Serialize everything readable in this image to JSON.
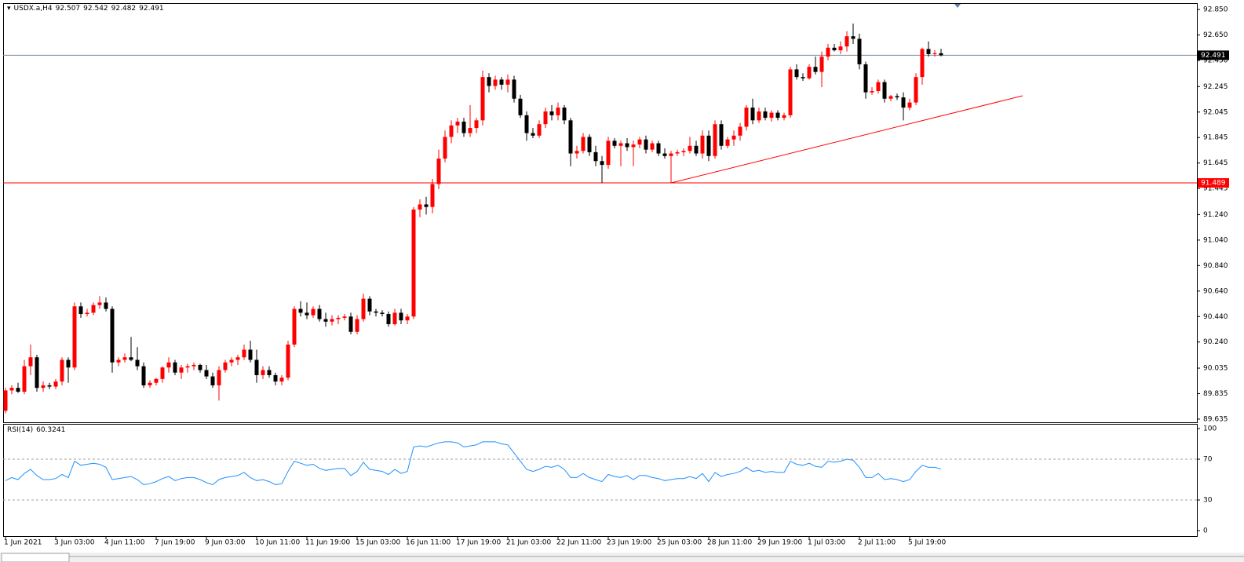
{
  "chart_data": [
    {
      "type": "candlestick",
      "symbol": "USDX.a,H4",
      "categories": [
        "1 Jun 2021",
        null,
        null,
        null,
        null,
        null,
        null,
        null,
        "3 Jun 03:00",
        null,
        null,
        null,
        null,
        null,
        null,
        null,
        "4 Jun 11:00",
        null,
        null,
        null,
        null,
        null,
        null,
        null,
        "7 Jun 19:00",
        null,
        null,
        null,
        null,
        null,
        null,
        null,
        "9 Jun 03:00",
        null,
        null,
        null,
        null,
        null,
        null,
        null,
        "10 Jun 11:00",
        null,
        null,
        null,
        null,
        null,
        null,
        null,
        "11 Jun 19:00",
        null,
        null,
        null,
        null,
        null,
        null,
        null,
        "15 Jun 03:00",
        null,
        null,
        null,
        null,
        null,
        null,
        null,
        "16 Jun 11:00",
        null,
        null,
        null,
        null,
        null,
        null,
        null,
        "17 Jun 19:00",
        null,
        null,
        null,
        null,
        null,
        null,
        null,
        "21 Jun 03:00",
        null,
        null,
        null,
        null,
        null,
        null,
        null,
        "22 Jun 11:00",
        null,
        null,
        null,
        null,
        null,
        null,
        null,
        "23 Jun 19:00",
        null,
        null,
        null,
        null,
        null,
        null,
        null,
        "25 Jun 03:00",
        null,
        null,
        null,
        null,
        null,
        null,
        null,
        "28 Jun 11:00",
        null,
        null,
        null,
        null,
        null,
        null,
        null,
        "29 Jun 19:00",
        null,
        null,
        null,
        null,
        null,
        null,
        null,
        "1 Jul 03:00",
        null,
        null,
        null,
        null,
        null,
        null,
        null,
        "2 Jul 11:00",
        null,
        null,
        null,
        null,
        null,
        null,
        null,
        "5 Jul 19:00",
        null,
        null,
        null,
        null,
        null
      ],
      "open": [
        89.7,
        89.86,
        89.88,
        89.85,
        90.05,
        90.12,
        89.88,
        89.9,
        89.89,
        89.93,
        90.1,
        90.04,
        90.52,
        90.46,
        90.47,
        90.53,
        90.55,
        90.5,
        90.08,
        90.1,
        90.12,
        90.1,
        90.05,
        89.9,
        89.92,
        89.95,
        90.04,
        90.08,
        90.0,
        90.04,
        90.05,
        90.06,
        90.02,
        89.97,
        89.9,
        90.02,
        90.08,
        90.1,
        90.12,
        90.18,
        90.1,
        89.98,
        90.02,
        89.98,
        89.93,
        89.96,
        90.22,
        90.5,
        90.47,
        90.45,
        90.5,
        90.42,
        90.4,
        90.42,
        90.43,
        90.44,
        90.32,
        90.42,
        90.58,
        90.48,
        90.47,
        90.46,
        90.38,
        90.47,
        90.41,
        90.44,
        91.28,
        91.32,
        91.3,
        91.48,
        91.68,
        91.85,
        91.94,
        91.97,
        91.88,
        91.92,
        91.98,
        92.32,
        92.25,
        92.3,
        92.26,
        92.3,
        92.15,
        92.02,
        91.88,
        91.86,
        91.95,
        92.05,
        92.02,
        92.08,
        91.98,
        91.72,
        91.74,
        91.85,
        91.73,
        91.66,
        91.63,
        91.82,
        91.78,
        91.8,
        91.77,
        91.79,
        91.83,
        91.75,
        91.8,
        91.72,
        91.7,
        91.72,
        91.73,
        91.74,
        91.78,
        91.72,
        91.86,
        91.7,
        91.95,
        91.78,
        91.83,
        91.86,
        91.93,
        92.08,
        91.98,
        92.05,
        92.0,
        92.04,
        92.0,
        92.02,
        92.38,
        92.32,
        92.31,
        92.4,
        92.36,
        92.48,
        92.55,
        92.53,
        92.56,
        92.64,
        92.62,
        92.42,
        92.2,
        92.21,
        92.28,
        92.15,
        92.17,
        92.16,
        92.08,
        92.12,
        92.32,
        92.54,
        92.5,
        92.507
      ],
      "high": [
        89.88,
        89.9,
        89.92,
        90.1,
        90.22,
        90.14,
        89.93,
        89.92,
        89.95,
        90.12,
        90.12,
        90.55,
        90.55,
        90.5,
        90.55,
        90.6,
        90.59,
        90.52,
        90.12,
        90.15,
        90.28,
        90.2,
        90.08,
        89.94,
        89.96,
        90.05,
        90.12,
        90.1,
        90.06,
        90.07,
        90.08,
        90.07,
        90.06,
        90.0,
        90.05,
        90.1,
        90.12,
        90.14,
        90.22,
        90.25,
        90.18,
        90.05,
        90.05,
        90.0,
        89.98,
        90.25,
        90.52,
        90.56,
        90.55,
        90.52,
        90.53,
        90.47,
        90.45,
        90.45,
        90.46,
        90.47,
        90.45,
        90.62,
        90.6,
        90.5,
        90.49,
        90.48,
        90.5,
        90.5,
        90.46,
        91.3,
        91.36,
        91.38,
        91.52,
        91.75,
        91.9,
        91.98,
        92.0,
        92.0,
        92.1,
        92.0,
        92.37,
        92.35,
        92.33,
        92.32,
        92.34,
        92.33,
        92.18,
        92.05,
        91.92,
        91.98,
        92.08,
        92.1,
        92.12,
        92.1,
        92.0,
        91.78,
        91.88,
        91.87,
        91.78,
        91.7,
        91.85,
        91.84,
        91.82,
        91.84,
        91.82,
        91.85,
        91.86,
        91.82,
        91.82,
        91.76,
        91.74,
        91.75,
        91.76,
        91.85,
        91.82,
        91.9,
        91.9,
        91.98,
        91.98,
        91.85,
        91.9,
        91.96,
        92.1,
        92.15,
        92.08,
        92.08,
        92.06,
        92.06,
        92.04,
        92.4,
        92.42,
        92.35,
        92.42,
        92.48,
        92.52,
        92.58,
        92.58,
        92.6,
        92.68,
        92.74,
        92.66,
        92.44,
        92.24,
        92.3,
        92.3,
        92.18,
        92.19,
        92.2,
        92.15,
        92.35,
        92.55,
        92.6,
        92.53,
        92.542
      ],
      "low": [
        89.68,
        89.83,
        89.84,
        89.83,
        89.98,
        89.85,
        89.85,
        89.87,
        89.87,
        89.9,
        89.92,
        90.02,
        90.43,
        90.44,
        90.45,
        90.5,
        90.48,
        90.0,
        90.05,
        90.08,
        90.09,
        90.02,
        89.88,
        89.88,
        89.9,
        89.92,
        90.0,
        89.98,
        89.95,
        90.0,
        90.02,
        90.0,
        89.95,
        89.88,
        89.78,
        90.0,
        90.05,
        90.06,
        90.1,
        90.08,
        89.92,
        89.95,
        89.96,
        89.9,
        89.9,
        89.94,
        90.2,
        90.44,
        90.42,
        90.43,
        90.4,
        90.36,
        90.37,
        90.38,
        90.41,
        90.3,
        90.3,
        90.4,
        90.45,
        90.44,
        90.44,
        90.36,
        90.37,
        90.38,
        90.38,
        90.42,
        91.22,
        91.24,
        91.25,
        91.44,
        91.65,
        91.8,
        91.88,
        91.85,
        91.85,
        91.88,
        91.94,
        92.2,
        92.22,
        92.22,
        92.2,
        92.12,
        92.0,
        91.82,
        91.84,
        91.84,
        91.92,
        91.98,
        91.98,
        91.95,
        91.62,
        91.68,
        91.72,
        91.7,
        91.62,
        91.49,
        91.6,
        91.76,
        91.62,
        91.74,
        91.62,
        91.76,
        91.72,
        91.73,
        91.7,
        91.68,
        91.49,
        91.7,
        91.7,
        91.72,
        91.7,
        91.68,
        91.66,
        91.68,
        91.75,
        91.76,
        91.78,
        91.82,
        91.9,
        91.95,
        91.96,
        91.98,
        91.97,
        91.98,
        91.98,
        92.0,
        92.3,
        92.29,
        92.3,
        92.34,
        92.24,
        92.45,
        92.52,
        92.5,
        92.52,
        92.58,
        92.38,
        92.15,
        92.18,
        92.19,
        92.12,
        92.13,
        92.14,
        91.98,
        92.06,
        92.1,
        92.26,
        92.48,
        92.48,
        92.482
      ],
      "close": [
        89.86,
        89.88,
        89.85,
        90.05,
        90.12,
        89.88,
        89.9,
        89.89,
        89.93,
        90.1,
        90.04,
        90.52,
        90.46,
        90.47,
        90.53,
        90.55,
        90.5,
        90.08,
        90.1,
        90.12,
        90.1,
        90.05,
        89.9,
        89.92,
        89.95,
        90.04,
        90.08,
        90.0,
        90.04,
        90.05,
        90.06,
        90.02,
        89.97,
        89.9,
        90.02,
        90.08,
        90.1,
        90.12,
        90.18,
        90.1,
        89.98,
        90.02,
        89.98,
        89.93,
        89.96,
        90.22,
        90.5,
        90.47,
        90.45,
        90.5,
        90.42,
        90.4,
        90.42,
        90.43,
        90.44,
        90.32,
        90.42,
        90.58,
        90.48,
        90.47,
        90.46,
        90.38,
        90.47,
        90.41,
        90.44,
        91.28,
        91.32,
        91.3,
        91.48,
        91.68,
        91.85,
        91.94,
        91.97,
        91.88,
        91.92,
        91.98,
        92.32,
        92.25,
        92.3,
        92.26,
        92.3,
        92.15,
        92.02,
        91.88,
        91.86,
        91.95,
        92.05,
        92.02,
        92.08,
        91.98,
        91.72,
        91.74,
        91.85,
        91.73,
        91.66,
        91.63,
        91.82,
        91.78,
        91.8,
        91.77,
        91.79,
        91.83,
        91.75,
        91.8,
        91.72,
        91.7,
        91.72,
        91.73,
        91.74,
        91.78,
        91.72,
        91.86,
        91.7,
        91.95,
        91.78,
        91.83,
        91.86,
        91.93,
        92.08,
        91.98,
        92.05,
        92.0,
        92.04,
        92.0,
        92.02,
        92.38,
        92.32,
        92.31,
        92.4,
        92.36,
        92.48,
        92.55,
        92.53,
        92.56,
        92.64,
        92.62,
        92.42,
        92.2,
        92.21,
        92.28,
        92.15,
        92.17,
        92.16,
        92.08,
        92.12,
        92.32,
        92.54,
        92.5,
        92.507,
        92.491
      ],
      "up_color": "#ff0000",
      "down_color": "#000000",
      "price_line_color": "#778899",
      "ylim": [
        89.61,
        92.9
      ],
      "yticks": [
        {
          "value": 92.85,
          "label": "92.850"
        },
        {
          "value": 92.65,
          "label": "92.650"
        },
        {
          "value": 92.45,
          "label": "92.450"
        },
        92.245,
        92.045,
        91.845,
        91.645,
        91.445,
        {
          "value": 91.24,
          "label": "91.240"
        },
        {
          "value": 91.04,
          "label": "91.040"
        },
        {
          "value": 90.84,
          "label": "90.840"
        },
        {
          "value": 90.64,
          "label": "90.640"
        },
        {
          "value": 90.44,
          "label": "90.440"
        },
        {
          "value": 90.24,
          "label": "90.240"
        },
        90.035,
        89.835,
        89.635
      ],
      "hlines": [
        {
          "value": 91.489,
          "color": "#ff0000"
        }
      ],
      "trendlines": [
        {
          "x": [
            106,
            162
          ],
          "y": [
            91.489,
            92.173
          ],
          "color": "#ff0000"
        }
      ]
    },
    {
      "type": "line",
      "series": [
        {
          "name": "RSI(14)",
          "color": "#1e90ff",
          "values": [
            49,
            52,
            50,
            56,
            60,
            54,
            50,
            50,
            51,
            55,
            52,
            68,
            64,
            65,
            66,
            65,
            62,
            50,
            51,
            52,
            53,
            50,
            45,
            46,
            48,
            51,
            53,
            49,
            51,
            52,
            52,
            50,
            47,
            45,
            50,
            52,
            53,
            54,
            57,
            52,
            49,
            50,
            48,
            45,
            46,
            58,
            68,
            66,
            64,
            65,
            61,
            59,
            60,
            61,
            61,
            54,
            58,
            67,
            60,
            59,
            58,
            55,
            60,
            56,
            58,
            82,
            83,
            82,
            84,
            86,
            87,
            87,
            86,
            82,
            83,
            84,
            87,
            87,
            87,
            85,
            84,
            76,
            68,
            60,
            58,
            60,
            63,
            62,
            64,
            60,
            52,
            52,
            56,
            52,
            50,
            48,
            55,
            53,
            52,
            54,
            50,
            54,
            54,
            52,
            51,
            49,
            50,
            51,
            51,
            53,
            51,
            56,
            48,
            57,
            53,
            55,
            56,
            58,
            62,
            58,
            59,
            57,
            58,
            57,
            57,
            68,
            65,
            64,
            66,
            63,
            62,
            68,
            67,
            68,
            70,
            69,
            62,
            52,
            52,
            56,
            50,
            51,
            50,
            48,
            50,
            58,
            64,
            62,
            62,
            60.3241
          ]
        }
      ],
      "ylim": [
        0,
        100
      ],
      "yticks": [
        100,
        70,
        30,
        0
      ],
      "levels": [
        70,
        30
      ]
    }
  ]
}
